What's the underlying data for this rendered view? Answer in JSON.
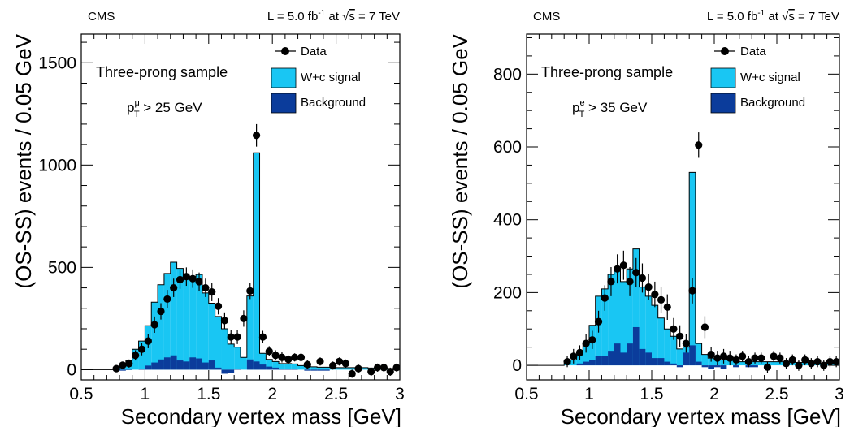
{
  "chart_data": [
    {
      "type": "histogram",
      "experiment": "CMS",
      "lumi_label": "L = 5.0 fb",
      "lumi_sup": "-1",
      "energy_label_prefix": " at ",
      "energy_sqrt": "s",
      "energy_label_suffix": " = 7 TeV",
      "sample_label": "Three-prong sample",
      "cut": {
        "p": "p",
        "sup": "μ",
        "sub": "T",
        "rest": " > 25 GeV"
      },
      "xlabel": "Secondary vertex mass [GeV]",
      "ylabel": "(OS-SS) events / 0.05 GeV",
      "xlim": [
        0.5,
        3.0
      ],
      "ylim": [
        -50,
        1640
      ],
      "xticks": [
        {
          "v": 0.5,
          "label": "0.5"
        },
        {
          "v": 1.0,
          "label": "1"
        },
        {
          "v": 1.5,
          "label": "1.5"
        },
        {
          "v": 2.0,
          "label": "2"
        },
        {
          "v": 2.5,
          "label": "2.5"
        },
        {
          "v": 3.0,
          "label": "3"
        }
      ],
      "yticks": [
        {
          "v": 0,
          "label": "0"
        },
        {
          "v": 500,
          "label": "500"
        },
        {
          "v": 1000,
          "label": "1000"
        },
        {
          "v": 1500,
          "label": "1500"
        }
      ],
      "ytick_minor_step": 100,
      "legend": [
        {
          "label": "Data",
          "kind": "marker"
        },
        {
          "label": "W+c signal",
          "kind": "box",
          "color": "#19c6f3"
        },
        {
          "label": "Background",
          "kind": "box",
          "color": "#0b3c9b"
        }
      ],
      "bin_edges": [
        0.5,
        0.55,
        0.6,
        0.65,
        0.7,
        0.75,
        0.8,
        0.85,
        0.9,
        0.95,
        1.0,
        1.05,
        1.1,
        1.15,
        1.2,
        1.25,
        1.3,
        1.35,
        1.4,
        1.45,
        1.5,
        1.55,
        1.6,
        1.65,
        1.7,
        1.75,
        1.8,
        1.85,
        1.9,
        1.95,
        2.0,
        2.05,
        2.1,
        2.15,
        2.2,
        2.25,
        2.3,
        2.35,
        2.4,
        2.45,
        2.5,
        2.55,
        2.6,
        2.65,
        2.7,
        2.75,
        2.8,
        2.85,
        2.9,
        2.95,
        3.0
      ],
      "total_stack": [
        0,
        0,
        0,
        0,
        0,
        0,
        18,
        45,
        100,
        140,
        215,
        330,
        415,
        470,
        525,
        495,
        455,
        455,
        465,
        375,
        325,
        260,
        200,
        125,
        110,
        60,
        360,
        1060,
        80,
        50,
        40,
        30,
        30,
        28,
        20,
        15,
        14,
        12,
        12,
        11,
        10,
        10,
        10,
        10,
        10,
        8,
        8,
        8,
        6,
        5
      ],
      "background": [
        0,
        0,
        0,
        0,
        0,
        -5,
        -5,
        -2,
        0,
        5,
        20,
        35,
        50,
        60,
        70,
        45,
        40,
        60,
        55,
        35,
        45,
        10,
        -20,
        -15,
        5,
        0,
        50,
        40,
        25,
        15,
        10,
        5,
        5,
        5,
        0,
        -5,
        -5,
        -5,
        -5,
        0,
        0,
        0,
        0,
        0,
        0,
        0,
        0,
        0,
        0,
        0
      ],
      "data": {
        "x": [
          0.775,
          0.825,
          0.875,
          0.925,
          0.975,
          1.025,
          1.075,
          1.125,
          1.175,
          1.225,
          1.275,
          1.325,
          1.375,
          1.425,
          1.475,
          1.525,
          1.575,
          1.625,
          1.675,
          1.725,
          1.775,
          1.825,
          1.875,
          1.925,
          1.975,
          2.025,
          2.075,
          2.125,
          2.175,
          2.225,
          2.275,
          2.375,
          2.475,
          2.525,
          2.575,
          2.625,
          2.675,
          2.775,
          2.825,
          2.875,
          2.925,
          2.975
        ],
        "y": [
          5,
          22,
          30,
          70,
          100,
          140,
          220,
          285,
          345,
          400,
          440,
          455,
          445,
          430,
          400,
          380,
          310,
          240,
          160,
          160,
          250,
          385,
          1145,
          160,
          90,
          70,
          60,
          50,
          60,
          60,
          25,
          40,
          20,
          40,
          30,
          -20,
          5,
          -10,
          10,
          10,
          -10,
          10
        ],
        "err": [
          15,
          15,
          20,
          25,
          30,
          35,
          40,
          40,
          45,
          45,
          45,
          45,
          45,
          45,
          45,
          45,
          40,
          40,
          35,
          35,
          40,
          40,
          55,
          30,
          25,
          25,
          25,
          20,
          20,
          20,
          20,
          20,
          20,
          20,
          20,
          20,
          20,
          20,
          20,
          20,
          20,
          20
        ]
      }
    },
    {
      "type": "histogram",
      "experiment": "CMS",
      "lumi_label": "L = 5.0 fb",
      "lumi_sup": "-1",
      "energy_label_prefix": " at ",
      "energy_sqrt": "s",
      "energy_label_suffix": " = 7 TeV",
      "sample_label": "Three-prong sample",
      "cut": {
        "p": "p",
        "sup": "e",
        "sub": "T",
        "rest": " > 35 GeV"
      },
      "xlabel": "Secondary vertex mass [GeV]",
      "ylabel": "(OS-SS) events / 0.05 GeV",
      "xlim": [
        0.5,
        3.0
      ],
      "ylim": [
        -40,
        910
      ],
      "xticks": [
        {
          "v": 0.5,
          "label": "0.5"
        },
        {
          "v": 1.0,
          "label": "1"
        },
        {
          "v": 1.5,
          "label": "1.5"
        },
        {
          "v": 2.0,
          "label": "2"
        },
        {
          "v": 2.5,
          "label": "2.5"
        },
        {
          "v": 3.0,
          "label": "3"
        }
      ],
      "yticks": [
        {
          "v": 0,
          "label": "0"
        },
        {
          "v": 200,
          "label": "200"
        },
        {
          "v": 400,
          "label": "400"
        },
        {
          "v": 600,
          "label": "600"
        },
        {
          "v": 800,
          "label": "800"
        }
      ],
      "ytick_minor_step": 50,
      "legend": [
        {
          "label": "Data",
          "kind": "marker"
        },
        {
          "label": "W+c signal",
          "kind": "box",
          "color": "#19c6f3"
        },
        {
          "label": "Background",
          "kind": "box",
          "color": "#0b3c9b"
        }
      ],
      "bin_edges": [
        0.5,
        0.55,
        0.6,
        0.65,
        0.7,
        0.75,
        0.8,
        0.85,
        0.9,
        0.95,
        1.0,
        1.05,
        1.1,
        1.15,
        1.2,
        1.25,
        1.3,
        1.35,
        1.4,
        1.45,
        1.5,
        1.55,
        1.6,
        1.65,
        1.7,
        1.75,
        1.8,
        1.85,
        1.9,
        1.95,
        2.0,
        2.05,
        2.1,
        2.15,
        2.2,
        2.25,
        2.3,
        2.35,
        2.4,
        2.45,
        2.5,
        2.55,
        2.6,
        2.65,
        2.7,
        2.75,
        2.8,
        2.85,
        2.9,
        2.95,
        3.0
      ],
      "total_stack": [
        0,
        0,
        0,
        0,
        0,
        0,
        5,
        15,
        30,
        60,
        110,
        190,
        210,
        250,
        265,
        230,
        265,
        320,
        215,
        190,
        165,
        130,
        100,
        80,
        45,
        50,
        530,
        60,
        30,
        20,
        15,
        15,
        15,
        15,
        10,
        10,
        10,
        10,
        10,
        10,
        10,
        10,
        10,
        8,
        8,
        5,
        5,
        5,
        5,
        5
      ],
      "background": [
        0,
        0,
        0,
        0,
        0,
        0,
        0,
        0,
        5,
        10,
        15,
        25,
        25,
        40,
        60,
        35,
        60,
        105,
        45,
        35,
        20,
        20,
        10,
        5,
        -5,
        35,
        55,
        10,
        -5,
        -10,
        -5,
        -10,
        0,
        -5,
        0,
        -5,
        -5,
        0,
        -5,
        0,
        0,
        0,
        0,
        0,
        0,
        0,
        0,
        0,
        0,
        0
      ],
      "data": {
        "x": [
          0.825,
          0.875,
          0.925,
          0.975,
          1.025,
          1.075,
          1.125,
          1.175,
          1.225,
          1.275,
          1.325,
          1.375,
          1.425,
          1.475,
          1.525,
          1.575,
          1.625,
          1.675,
          1.725,
          1.775,
          1.825,
          1.875,
          1.925,
          1.975,
          2.025,
          2.075,
          2.125,
          2.175,
          2.225,
          2.275,
          2.325,
          2.375,
          2.425,
          2.475,
          2.525,
          2.575,
          2.625,
          2.675,
          2.725,
          2.775,
          2.825,
          2.875,
          2.925,
          2.975
        ],
        "y": [
          10,
          25,
          35,
          60,
          70,
          120,
          185,
          230,
          265,
          275,
          230,
          255,
          240,
          215,
          195,
          180,
          160,
          100,
          80,
          60,
          205,
          605,
          105,
          30,
          20,
          25,
          20,
          15,
          25,
          10,
          20,
          20,
          -5,
          25,
          20,
          5,
          15,
          0,
          15,
          5,
          10,
          0,
          10,
          10
        ],
        "err": [
          15,
          20,
          20,
          25,
          25,
          30,
          35,
          40,
          40,
          40,
          40,
          40,
          40,
          35,
          35,
          35,
          35,
          30,
          30,
          25,
          35,
          35,
          30,
          20,
          20,
          20,
          20,
          15,
          15,
          15,
          15,
          15,
          15,
          15,
          15,
          15,
          15,
          15,
          15,
          15,
          15,
          15,
          15,
          15
        ]
      }
    }
  ]
}
